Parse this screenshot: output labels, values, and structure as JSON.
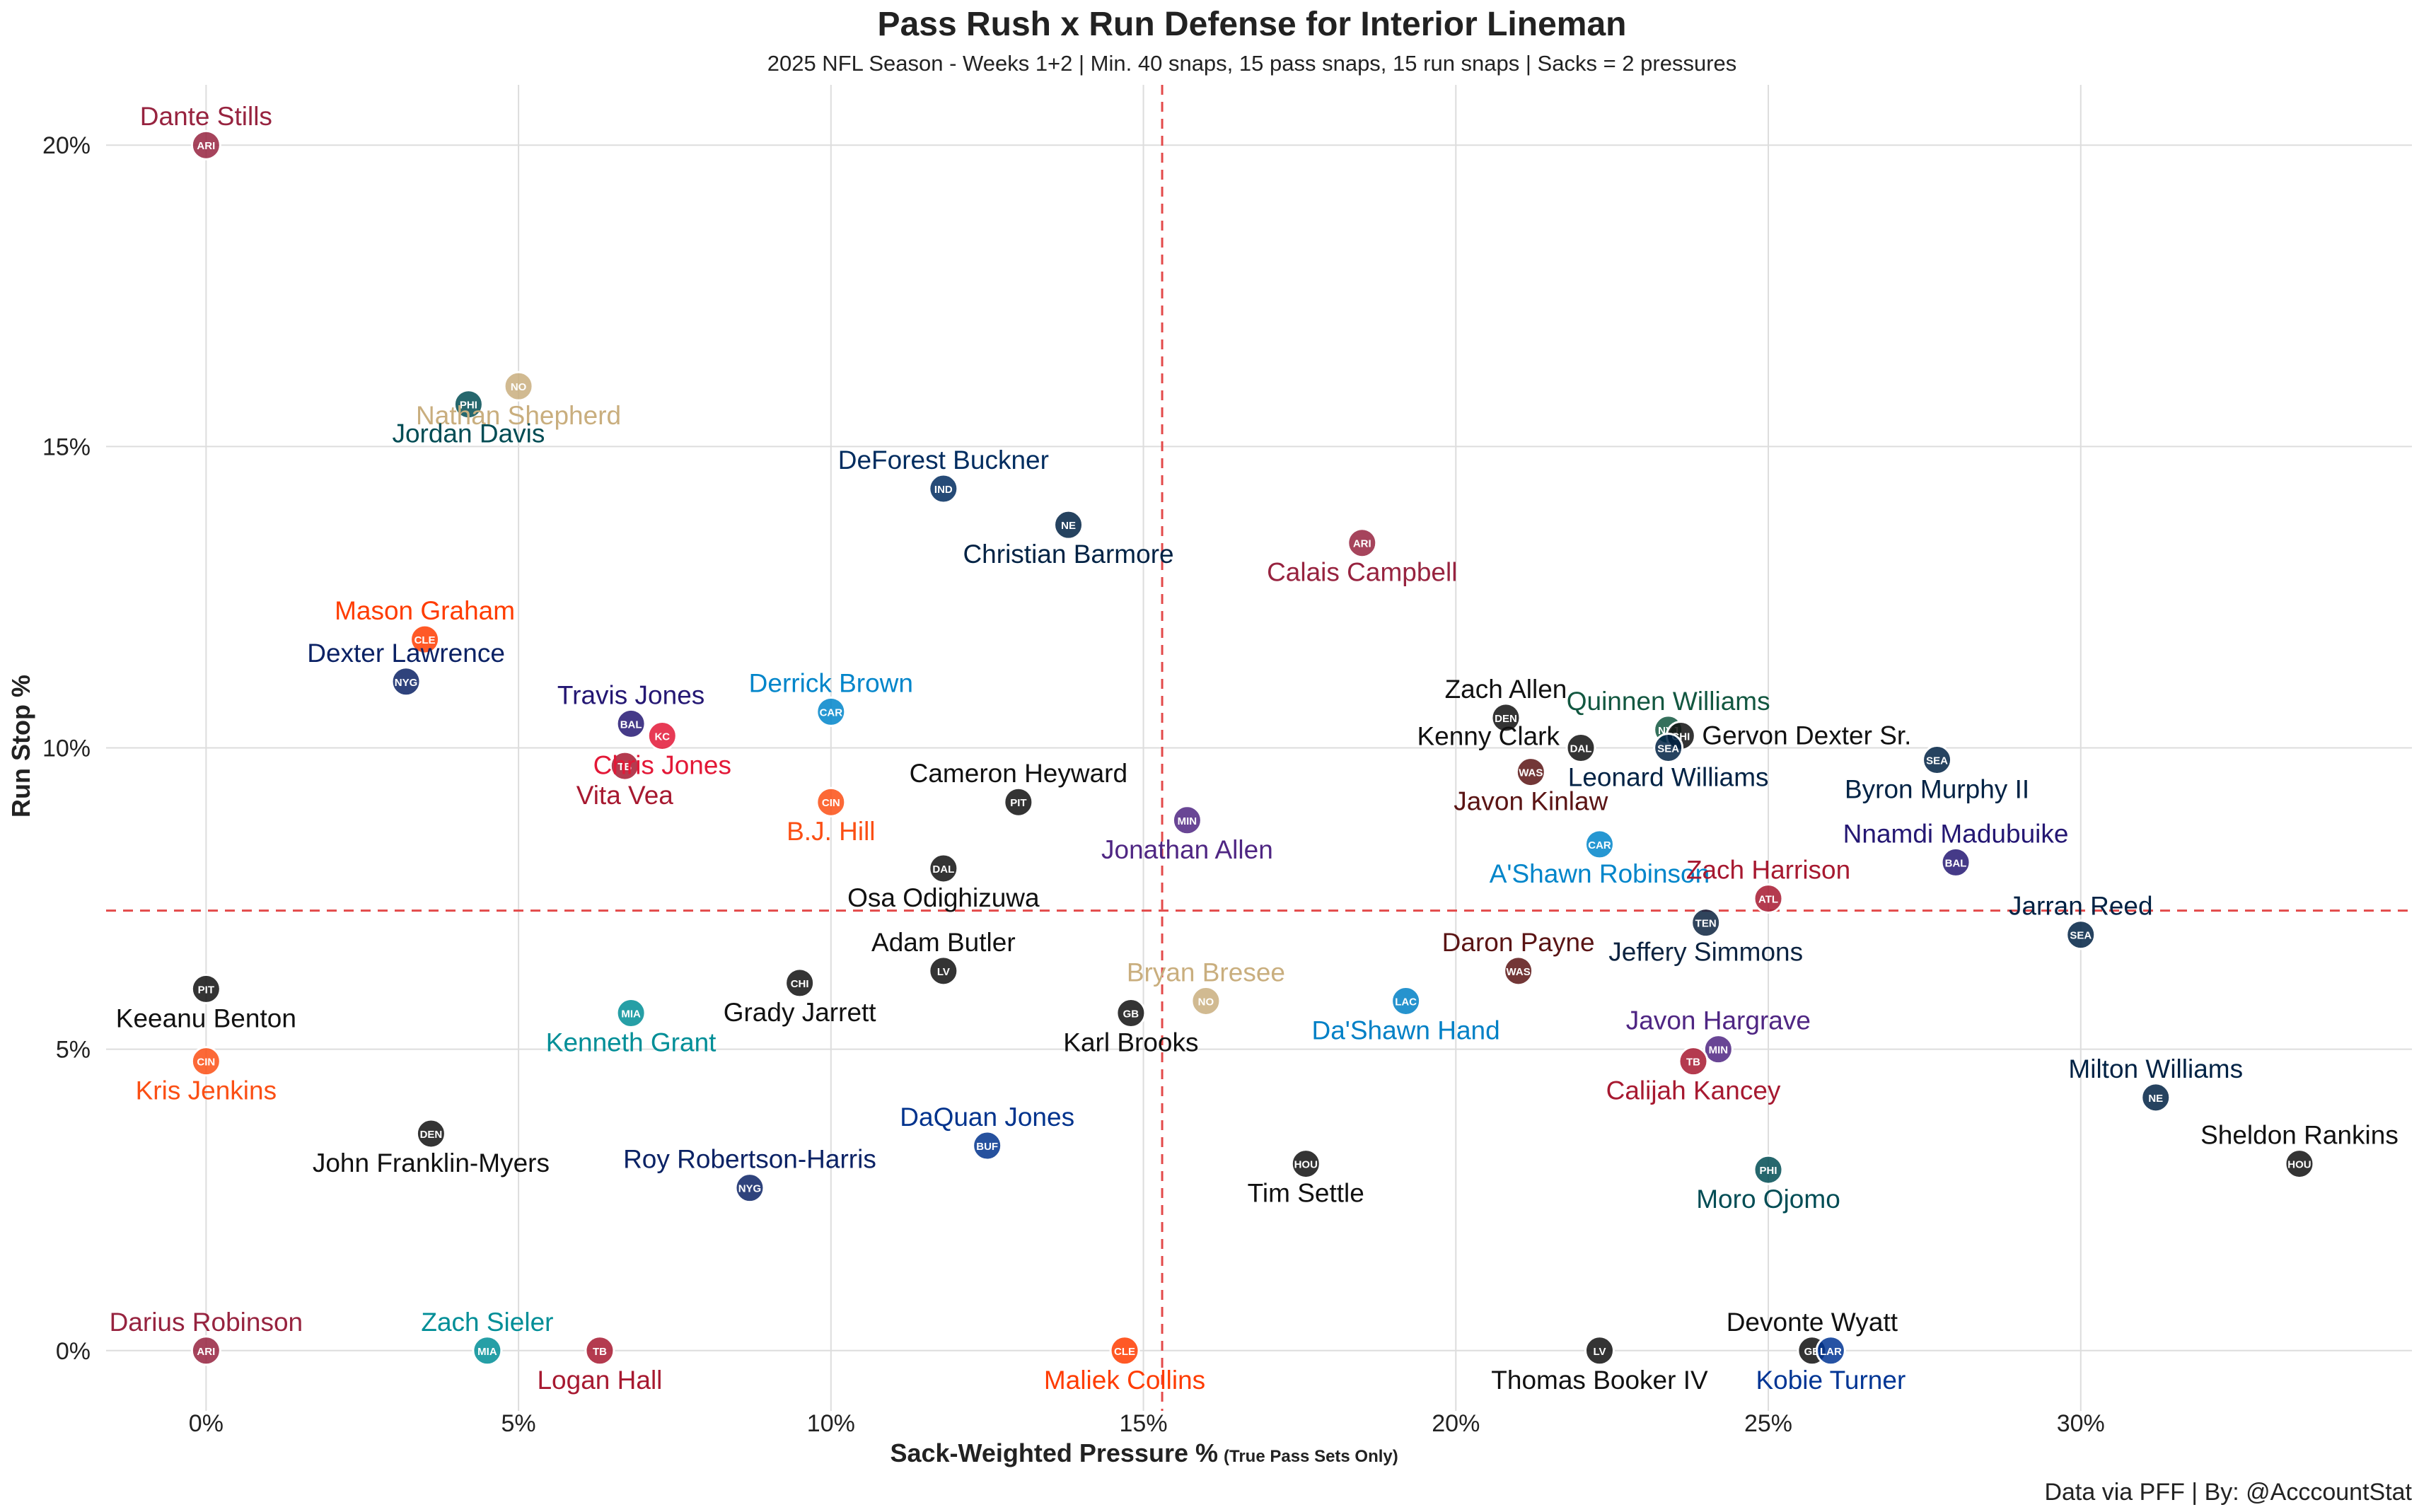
{
  "chart_data": {
    "type": "scatter",
    "title": "Pass Rush x Run Defense for Interior Lineman",
    "subtitle": "2025 NFL Season - Weeks 1+2 | Min. 40 snaps, 15 pass snaps, 15 run snaps | Sacks = 2 pressures",
    "xlabel": "Sack-Weighted Pressure %",
    "xlabel_note": "(True Pass Sets Only)",
    "ylabel": "Run Stop %",
    "caption": "Data via PFF | By: @AcccountStat",
    "xlim": [
      -1.6,
      35.3
    ],
    "ylim": [
      -1.0,
      21.0
    ],
    "x_ticks": [
      0,
      5,
      10,
      15,
      20,
      25,
      30
    ],
    "x_tick_labels": [
      "0%",
      "5%",
      "10%",
      "15%",
      "20%",
      "25%",
      "30%"
    ],
    "y_ticks": [
      0,
      5,
      10,
      15,
      20
    ],
    "y_tick_labels": [
      "0%",
      "5%",
      "10%",
      "15%",
      "20%"
    ],
    "ref_x": 15.3,
    "ref_y": 7.3,
    "points": [
      {
        "name": "Dante Stills",
        "team": "ARI",
        "x": 0.0,
        "y": 20.0,
        "color": "#97233F",
        "label_pos": "above"
      },
      {
        "name": "Nathan Shepherd",
        "team": "NO",
        "x": 5.0,
        "y": 16.0,
        "color": "#C9AE7E",
        "label_pos": "below"
      },
      {
        "name": "Jordan Davis",
        "team": "PHI",
        "x": 4.2,
        "y": 15.7,
        "color": "#004C54",
        "label_pos": "below"
      },
      {
        "name": "DeForest Buckner",
        "team": "IND",
        "x": 11.8,
        "y": 14.3,
        "color": "#002C5F",
        "label_pos": "above"
      },
      {
        "name": "Christian Barmore",
        "team": "NE",
        "x": 13.8,
        "y": 13.7,
        "color": "#002244",
        "label_pos": "below"
      },
      {
        "name": "Calais Campbell",
        "team": "ARI",
        "x": 18.5,
        "y": 13.4,
        "color": "#97233F",
        "label_pos": "below"
      },
      {
        "name": "Mason Graham",
        "team": "CLE",
        "x": 3.5,
        "y": 11.8,
        "color": "#FF3C00",
        "label_pos": "above"
      },
      {
        "name": "Dexter Lawrence",
        "team": "NYG",
        "x": 3.2,
        "y": 11.1,
        "color": "#0B2265",
        "label_pos": "above"
      },
      {
        "name": "Travis Jones",
        "team": "BAL",
        "x": 6.8,
        "y": 10.4,
        "color": "#241773",
        "label_pos": "above"
      },
      {
        "name": "Chris Jones",
        "team": "KC",
        "x": 7.3,
        "y": 10.2,
        "color": "#E31837",
        "label_pos": "below"
      },
      {
        "name": "Derrick Brown",
        "team": "CAR",
        "x": 10.0,
        "y": 10.6,
        "color": "#0085CA",
        "label_pos": "above"
      },
      {
        "name": "Vita Vea",
        "team": "TB",
        "x": 6.7,
        "y": 9.7,
        "color": "#A71930",
        "label_pos": "below"
      },
      {
        "name": "B.J. Hill",
        "team": "CIN",
        "x": 10.0,
        "y": 9.1,
        "color": "#FB4F14",
        "label_pos": "below"
      },
      {
        "name": "Cameron Heyward",
        "team": "PIT",
        "x": 13.0,
        "y": 9.1,
        "color": "#111111",
        "label_pos": "above"
      },
      {
        "name": "Jonathan Allen",
        "team": "MIN",
        "x": 15.7,
        "y": 8.8,
        "color": "#4F2683",
        "label_pos": "below"
      },
      {
        "name": "Osa Odighizuwa",
        "team": "DAL",
        "x": 11.8,
        "y": 8.0,
        "color": "#111111",
        "label_pos": "below"
      },
      {
        "name": "Zach Allen",
        "team": "DEN",
        "x": 20.8,
        "y": 10.5,
        "color": "#111111",
        "label_pos": "above"
      },
      {
        "name": "Kenny Clark",
        "team": "DAL",
        "x": 22.0,
        "y": 10.0,
        "color": "#111111",
        "label_pos": "left"
      },
      {
        "name": "Javon Kinlaw",
        "team": "WAS",
        "x": 21.2,
        "y": 9.6,
        "color": "#5A1414",
        "label_pos": "below"
      },
      {
        "name": "Quinnen Williams",
        "team": "NYJ",
        "x": 23.4,
        "y": 10.3,
        "color": "#125740",
        "label_pos": "above"
      },
      {
        "name": "Gervon Dexter Sr.",
        "team": "CHI",
        "x": 23.6,
        "y": 10.2,
        "color": "#111111",
        "label_pos": "right"
      },
      {
        "name": "Leonard Williams",
        "team": "SEA",
        "x": 23.4,
        "y": 10.0,
        "color": "#002244",
        "label_pos": "below"
      },
      {
        "name": "Byron Murphy II",
        "team": "SEA",
        "x": 27.7,
        "y": 9.8,
        "color": "#002244",
        "label_pos": "below"
      },
      {
        "name": "A'Shawn Robinson",
        "team": "CAR",
        "x": 22.3,
        "y": 8.4,
        "color": "#0085CA",
        "label_pos": "below"
      },
      {
        "name": "Nnamdi Madubuike",
        "team": "BAL",
        "x": 28.0,
        "y": 8.1,
        "color": "#241773",
        "label_pos": "above"
      },
      {
        "name": "Zach Harrison",
        "team": "ATL",
        "x": 25.0,
        "y": 7.5,
        "color": "#A71930",
        "label_pos": "above"
      },
      {
        "name": "Jeffery Simmons",
        "team": "TEN",
        "x": 24.0,
        "y": 7.1,
        "color": "#0C2340",
        "label_pos": "below"
      },
      {
        "name": "Jarran Reed",
        "team": "SEA",
        "x": 30.0,
        "y": 6.9,
        "color": "#002244",
        "label_pos": "above"
      },
      {
        "name": "Keeanu Benton",
        "team": "PIT",
        "x": 0.0,
        "y": 6.0,
        "color": "#111111",
        "label_pos": "below"
      },
      {
        "name": "Grady Jarrett",
        "team": "CHI",
        "x": 9.5,
        "y": 6.1,
        "color": "#111111",
        "label_pos": "below"
      },
      {
        "name": "Adam Butler",
        "team": "LV",
        "x": 11.8,
        "y": 6.3,
        "color": "#111111",
        "label_pos": "above"
      },
      {
        "name": "Bryan Bresee",
        "team": "NO",
        "x": 16.0,
        "y": 5.8,
        "color": "#C9AE7E",
        "label_pos": "above"
      },
      {
        "name": "Karl Brooks",
        "team": "GB",
        "x": 14.8,
        "y": 5.6,
        "color": "#111111",
        "label_pos": "below"
      },
      {
        "name": "Daron Payne",
        "team": "WAS",
        "x": 21.0,
        "y": 6.3,
        "color": "#5A1414",
        "label_pos": "above"
      },
      {
        "name": "Da'Shawn Hand",
        "team": "LAC",
        "x": 19.2,
        "y": 5.8,
        "color": "#0080C6",
        "label_pos": "below"
      },
      {
        "name": "Kenneth Grant",
        "team": "MIA",
        "x": 6.8,
        "y": 5.6,
        "color": "#008E97",
        "label_pos": "below"
      },
      {
        "name": "Kris Jenkins",
        "team": "CIN",
        "x": 0.0,
        "y": 4.8,
        "color": "#FB4F14",
        "label_pos": "below"
      },
      {
        "name": "Javon Hargrave",
        "team": "MIN",
        "x": 24.2,
        "y": 5.0,
        "color": "#4F2683",
        "label_pos": "above"
      },
      {
        "name": "Calijah Kancey",
        "team": "TB",
        "x": 23.8,
        "y": 4.8,
        "color": "#A71930",
        "label_pos": "below"
      },
      {
        "name": "Milton Williams",
        "team": "NE",
        "x": 31.2,
        "y": 4.2,
        "color": "#002244",
        "label_pos": "above"
      },
      {
        "name": "John Franklin-Myers",
        "team": "DEN",
        "x": 3.6,
        "y": 3.6,
        "color": "#111111",
        "label_pos": "below"
      },
      {
        "name": "DaQuan Jones",
        "team": "BUF",
        "x": 12.5,
        "y": 3.4,
        "color": "#00338D",
        "label_pos": "above"
      },
      {
        "name": "Roy Robertson-Harris",
        "team": "NYG",
        "x": 8.7,
        "y": 2.7,
        "color": "#0B2265",
        "label_pos": "above"
      },
      {
        "name": "Tim Settle",
        "team": "HOU",
        "x": 17.6,
        "y": 3.1,
        "color": "#111111",
        "label_pos": "below"
      },
      {
        "name": "Moro Ojomo",
        "team": "PHI",
        "x": 25.0,
        "y": 3.0,
        "color": "#004C54",
        "label_pos": "below"
      },
      {
        "name": "Sheldon Rankins",
        "team": "HOU",
        "x": 33.5,
        "y": 3.1,
        "color": "#111111",
        "label_pos": "above"
      },
      {
        "name": "Darius Robinson",
        "team": "ARI",
        "x": 0.0,
        "y": 0.0,
        "color": "#97233F",
        "label_pos": "above"
      },
      {
        "name": "Zach Sieler",
        "team": "MIA",
        "x": 4.5,
        "y": 0.0,
        "color": "#008E97",
        "label_pos": "above"
      },
      {
        "name": "Logan Hall",
        "team": "TB",
        "x": 6.3,
        "y": 0.0,
        "color": "#A71930",
        "label_pos": "below"
      },
      {
        "name": "Maliek Collins",
        "team": "CLE",
        "x": 14.7,
        "y": 0.0,
        "color": "#FF3C00",
        "label_pos": "below"
      },
      {
        "name": "Thomas Booker IV",
        "team": "LV",
        "x": 22.3,
        "y": 0.0,
        "color": "#111111",
        "label_pos": "below"
      },
      {
        "name": "Devonte Wyatt",
        "team": "GB",
        "x": 25.7,
        "y": 0.0,
        "color": "#111111",
        "label_pos": "above"
      },
      {
        "name": "Kobie Turner",
        "team": "LAR",
        "x": 26.0,
        "y": 0.0,
        "color": "#003594",
        "label_pos": "below"
      }
    ]
  }
}
